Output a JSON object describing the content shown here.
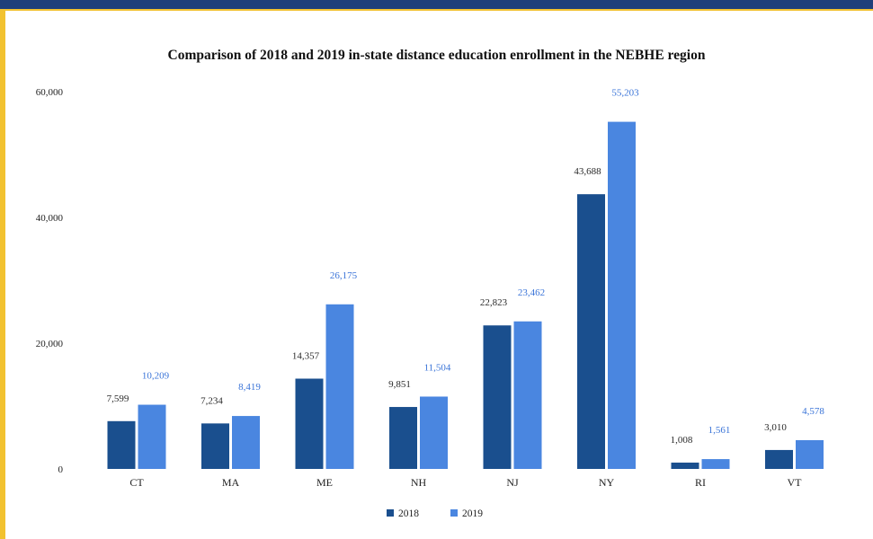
{
  "colors": {
    "series_2018": "#1a4f8e",
    "series_2019": "#4a86e0",
    "label_2018": "#2a2a2a",
    "label_2019": "#3a74d8",
    "axis_text": "#222222",
    "border_blue": "#1f3f7a",
    "border_gold": "#f2c230"
  },
  "chart_data": {
    "type": "bar",
    "title": "Comparison of 2018 and 2019 in-state distance education enrollment in the NEBHE region",
    "xlabel": "",
    "ylabel": "",
    "categories": [
      "CT",
      "MA",
      "ME",
      "NH",
      "NJ",
      "NY",
      "RI",
      "VT"
    ],
    "series": [
      {
        "name": "2018",
        "values": [
          7599,
          7234,
          14357,
          9851,
          22823,
          43688,
          1008,
          3010
        ],
        "labels": [
          "7,599",
          "7,234",
          "14,357",
          "9,851",
          "22,823",
          "43,688",
          "1,008",
          "3,010"
        ]
      },
      {
        "name": "2019",
        "values": [
          10209,
          8419,
          26175,
          11504,
          23462,
          55203,
          1561,
          4578
        ],
        "labels": [
          "10,209",
          "8,419",
          "26,175",
          "11,504",
          "23,462",
          "55,203",
          "1,561",
          "4,578"
        ]
      }
    ],
    "ylim": [
      0,
      60000
    ],
    "yticks": [
      0,
      20000,
      40000,
      60000
    ],
    "ytick_labels": [
      "0",
      "20,000",
      "40,000",
      "60,000"
    ],
    "grid": false,
    "legend_position": "bottom-center"
  }
}
